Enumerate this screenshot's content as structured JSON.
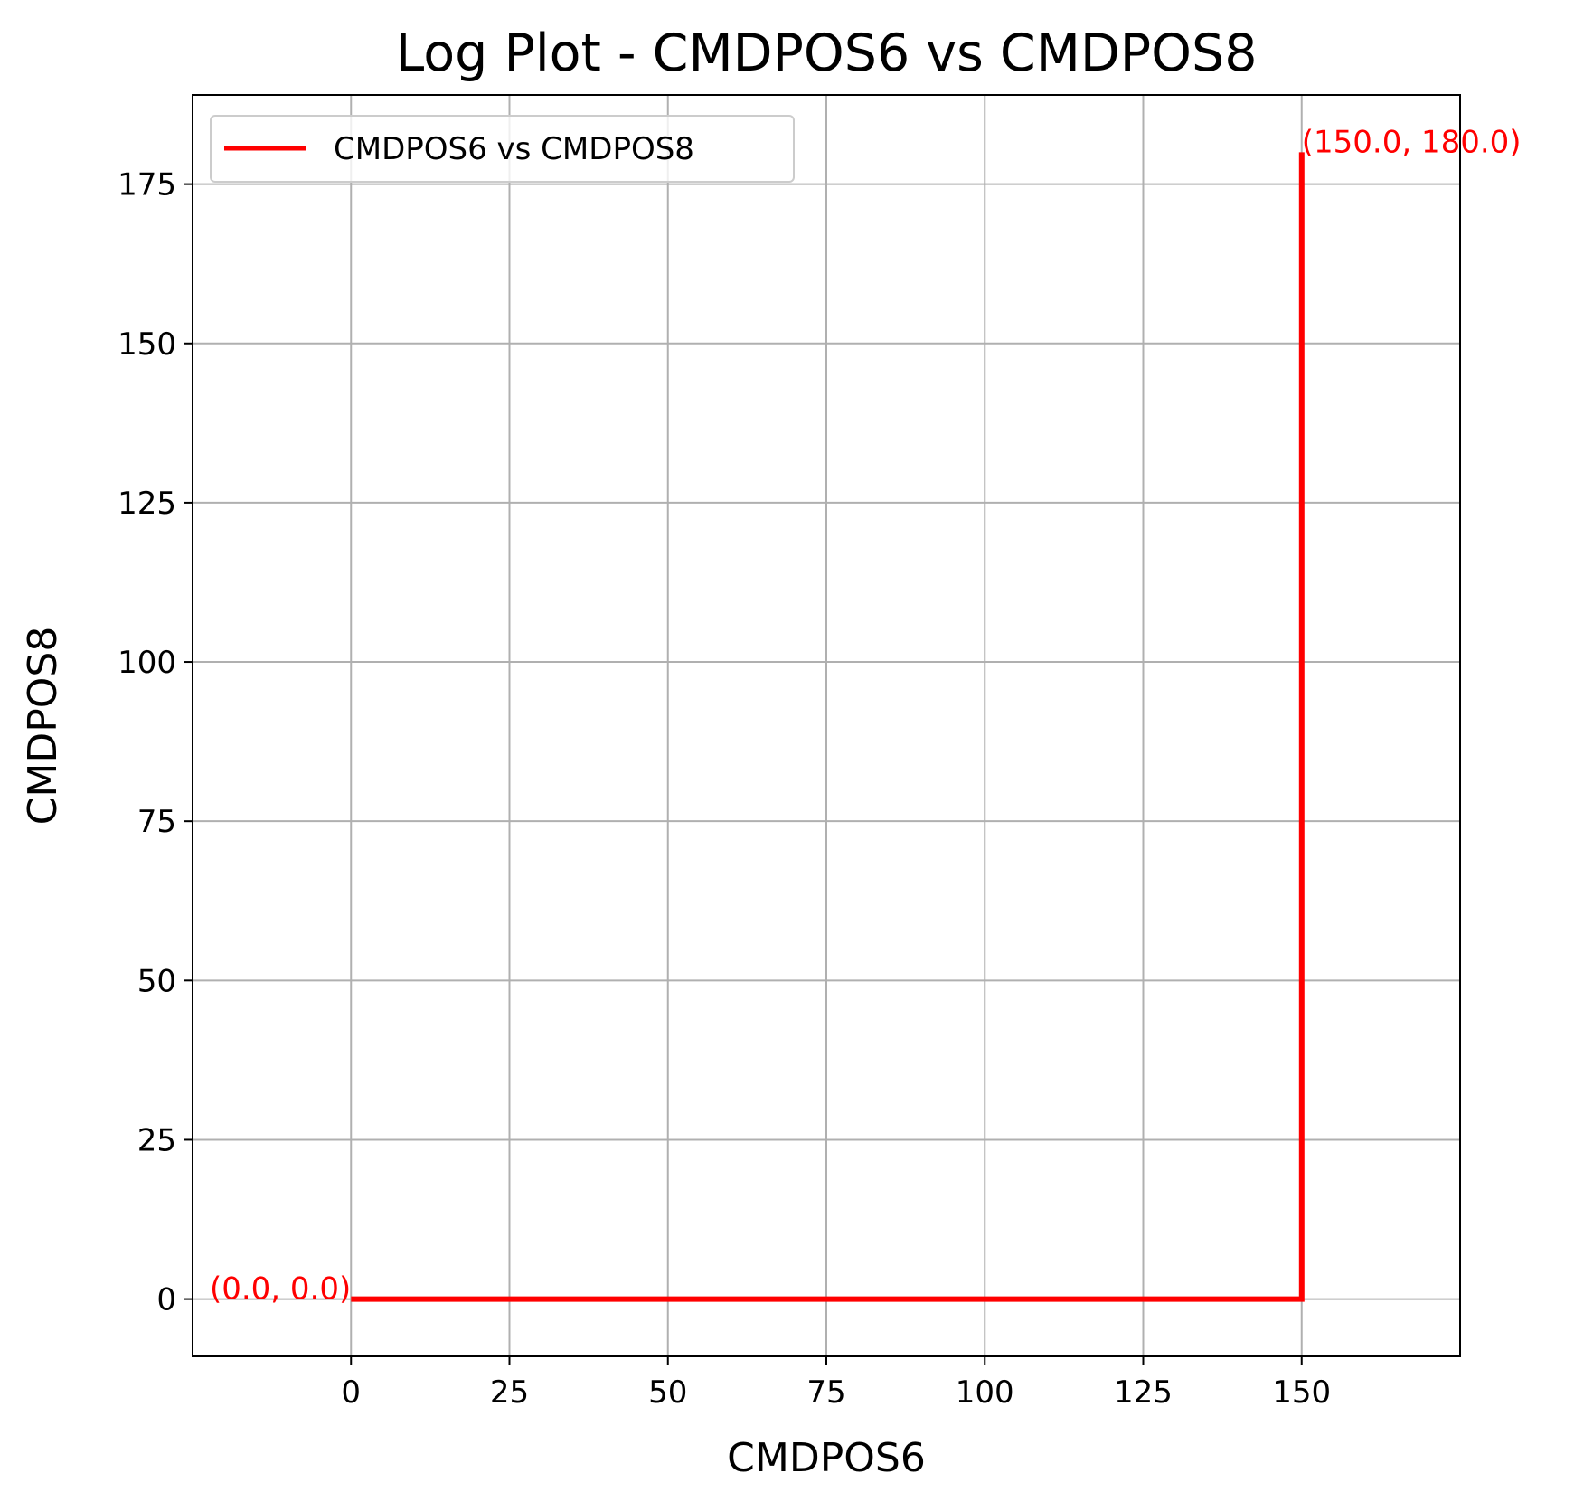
{
  "chart_data": {
    "type": "line",
    "title": "Log Plot - CMDPOS6 vs CMDPOS8",
    "xlabel": "CMDPOS6",
    "ylabel": "CMDPOS8",
    "xlim": [
      -25,
      175
    ],
    "ylim": [
      -9,
      189
    ],
    "xticks": [
      0,
      25,
      50,
      75,
      100,
      125,
      150
    ],
    "yticks": [
      0,
      25,
      50,
      75,
      100,
      125,
      150,
      175
    ],
    "grid": true,
    "legend_position": "top-left",
    "series": [
      {
        "name": "CMDPOS6 vs CMDPOS8",
        "color": "#ff0000",
        "x": [
          0,
          150,
          150
        ],
        "y": [
          0,
          0,
          180
        ]
      }
    ],
    "annotations": [
      {
        "text": "(0.0, 0.0)",
        "x": 0,
        "y": 0,
        "anchor": "end",
        "color": "#ff0000"
      },
      {
        "text": "(150.0, 180.0)",
        "x": 150,
        "y": 180,
        "anchor": "start",
        "color": "#ff0000"
      }
    ]
  },
  "colors": {
    "series": "#ff0000",
    "grid": "#b0b0b0",
    "axis": "#000000",
    "legend_border": "#cccccc"
  }
}
